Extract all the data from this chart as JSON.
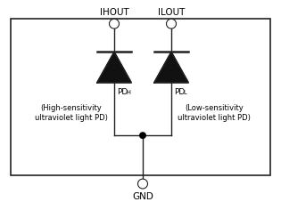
{
  "background_color": "#ffffff",
  "border_color": "#222222",
  "line_color": "#222222",
  "fill_color": "#111111",
  "label_IHOUT": "IHOUT",
  "label_ILOUT": "ILOUT",
  "label_GND": "GND",
  "label_PDH": "PD",
  "label_PDH_sub": "H",
  "label_PDL": "PD",
  "label_PDL_sub": "L",
  "label_high_line1": "(High-sensitivity",
  "label_high_line2": "ultraviolet light PD)",
  "label_low_line1": "(Low-sensitivity",
  "label_low_line2": "ultraviolet light PD)",
  "figw": 3.15,
  "figh": 2.28,
  "dpi": 100
}
